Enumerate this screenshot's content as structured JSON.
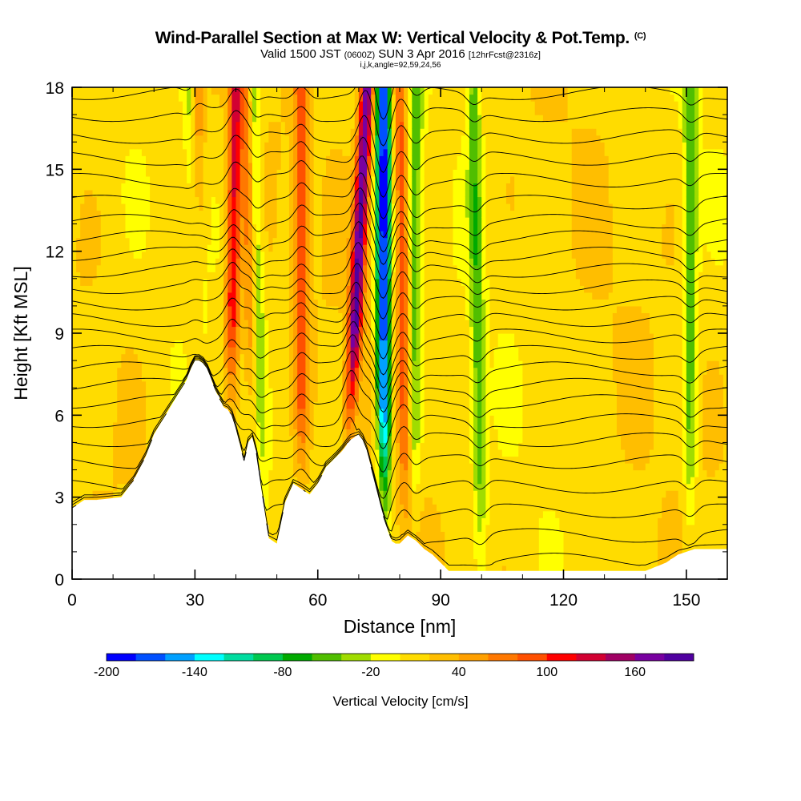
{
  "title": {
    "main": "Wind-Parallel Section at Max W: Vertical Velocity & Pot.Temp.",
    "copyright": "(C)",
    "valid_a": "Valid 1500 JST",
    "valid_utc": "(0600Z)",
    "valid_b": "SUN 3 Apr 2016",
    "forecast": "[12hrFcst@2316z]",
    "indices": "i,j,k,angle=92,59,24,56"
  },
  "chart_data": {
    "type": "heatmap",
    "xlabel": "Distance [nm]",
    "ylabel": "Height [Kft MSL]",
    "xlim": [
      0,
      160
    ],
    "ylim": [
      0,
      18
    ],
    "x_ticks": [
      0,
      30,
      60,
      90,
      120,
      150
    ],
    "y_ticks": [
      0,
      3,
      6,
      9,
      12,
      15,
      18
    ],
    "terrain": {
      "x": [
        0,
        3,
        6,
        12,
        15,
        18,
        20,
        22,
        24,
        26,
        28,
        29,
        30,
        31,
        32,
        33,
        34,
        35,
        36,
        37,
        38,
        39,
        40,
        41,
        42,
        43,
        44,
        45,
        46,
        47,
        48,
        50,
        52,
        54,
        56,
        58,
        60,
        62,
        64,
        66,
        68,
        69,
        70,
        71,
        72,
        73,
        74,
        75,
        76,
        77,
        78,
        79,
        80,
        82,
        84,
        86,
        88,
        90,
        92,
        94,
        96,
        98,
        100,
        105,
        110,
        115,
        120,
        125,
        130,
        135,
        140,
        145,
        148,
        150,
        152,
        155,
        158,
        160
      ],
      "height": [
        2.6,
        2.9,
        2.9,
        3.0,
        3.6,
        4.5,
        5.3,
        5.8,
        6.3,
        6.8,
        7.3,
        7.7,
        8.0,
        8.0,
        7.9,
        7.7,
        7.3,
        6.9,
        6.6,
        6.3,
        6.2,
        6.0,
        5.5,
        4.9,
        4.3,
        5.0,
        5.2,
        4.6,
        3.5,
        2.5,
        1.5,
        1.3,
        2.8,
        3.5,
        3.3,
        3.1,
        3.5,
        4.1,
        4.4,
        4.7,
        5.1,
        5.2,
        5.3,
        5.1,
        4.7,
        4.1,
        3.5,
        2.9,
        2.3,
        1.8,
        1.4,
        1.3,
        1.3,
        1.6,
        1.4,
        1.1,
        0.9,
        0.6,
        0.3,
        0.3,
        0.3,
        0.3,
        0.3,
        0.3,
        0.3,
        0.3,
        0.3,
        0.3,
        0.3,
        0.3,
        0.3,
        0.6,
        0.9,
        1.0,
        1.1,
        1.1,
        1.1,
        1.1
      ]
    },
    "updraft_bands": [
      {
        "x_bottom": 32,
        "x_top": 30,
        "w_peak": 90
      },
      {
        "x_bottom": 38,
        "x_top": 40,
        "w_peak": 110
      },
      {
        "x_bottom": 45,
        "x_top": 43,
        "w_peak": 90
      },
      {
        "x_bottom": 56,
        "x_top": 56,
        "w_peak": 80
      },
      {
        "x_bottom": 66,
        "x_top": 72,
        "w_peak": 170
      },
      {
        "x_bottom": 82,
        "x_top": 80,
        "w_peak": 80
      }
    ],
    "downdraft_bands": [
      {
        "x_bottom": 34,
        "x_top": 29,
        "w_peak": -80
      },
      {
        "x_bottom": 46,
        "x_top": 44,
        "w_peak": -90
      },
      {
        "x_bottom": 76,
        "x_top": 76,
        "w_peak": -200
      },
      {
        "x_bottom": 83,
        "x_top": 84,
        "w_peak": -60
      },
      {
        "x_bottom": 100,
        "x_top": 98,
        "w_peak": -60
      },
      {
        "x_bottom": 151,
        "x_top": 151,
        "w_peak": -60
      }
    ],
    "isentrope_base_heights": [
      0.7,
      1.6,
      2.5,
      3.4,
      4.3,
      5.1,
      5.8,
      6.5,
      7.1,
      7.7,
      8.3,
      8.9,
      9.5,
      10.1,
      10.7,
      11.3,
      11.9,
      12.5,
      13.1,
      13.8,
      14.6,
      15.4,
      16.2,
      17.0,
      17.8
    ]
  },
  "colorbar": {
    "title": "Vertical Velocity [cm/s]",
    "labels": [
      "-200",
      "-140",
      "-80",
      "-20",
      "40",
      "100",
      "160"
    ],
    "colors": [
      "#0000ff",
      "#0050ff",
      "#00a0ff",
      "#00ffff",
      "#00dca0",
      "#00c850",
      "#00aa00",
      "#50be00",
      "#a0dc00",
      "#ffff00",
      "#ffdc00",
      "#ffbe00",
      "#ffa000",
      "#ff7800",
      "#ff5000",
      "#ff0000",
      "#d20032",
      "#a00064",
      "#7800a0",
      "#5000a0"
    ]
  }
}
